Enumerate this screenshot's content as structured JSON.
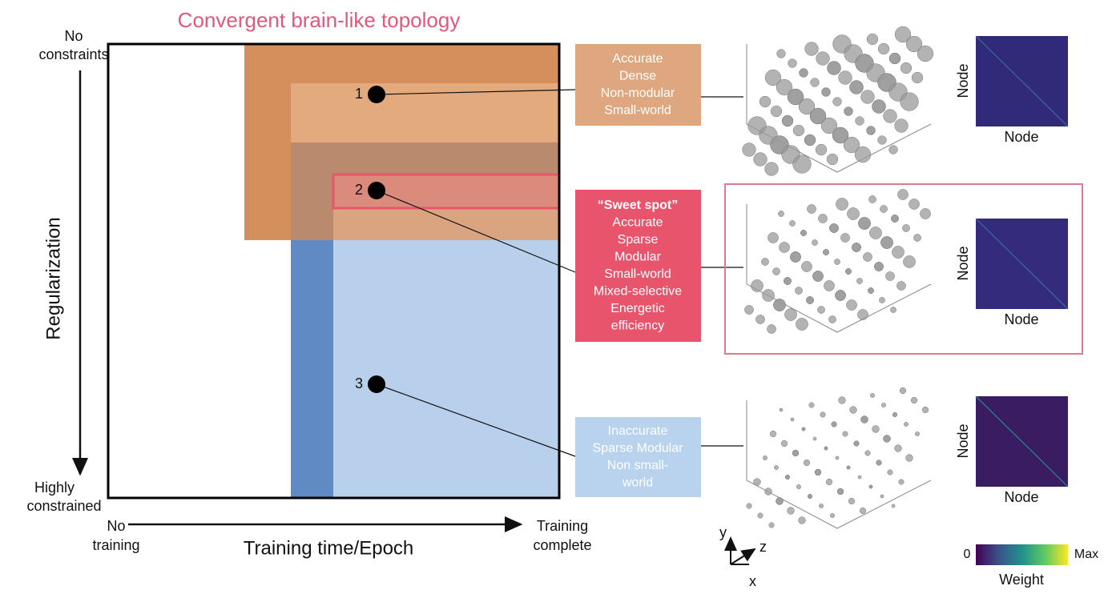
{
  "title": "Convergent brain-like topology",
  "y_axis": {
    "top": [
      "No",
      "constraints"
    ],
    "label": "Regularization",
    "bottom": [
      "Highly",
      "constrained"
    ]
  },
  "x_axis": {
    "left": [
      "No",
      "training"
    ],
    "label": "Training time/Epoch",
    "right": [
      "Training",
      "complete"
    ]
  },
  "points": [
    {
      "label": "1"
    },
    {
      "label": "2"
    },
    {
      "label": "3"
    }
  ],
  "panels": [
    {
      "lines": [
        "Accurate",
        "Dense",
        "Non-modular",
        "Small-world"
      ],
      "matrix": {
        "y_label": "Node",
        "x_label": "Node"
      }
    },
    {
      "heading": "“Sweet spot”",
      "lines": [
        "Accurate",
        "Sparse",
        "Modular",
        "Small-world",
        "Mixed-selective",
        "Energetic",
        "efficiency"
      ],
      "matrix": {
        "y_label": "Node",
        "x_label": "Node"
      }
    },
    {
      "lines": [
        "Inaccurate",
        "Sparse Modular",
        "Non small-",
        "world"
      ],
      "matrix": {
        "y_label": "Node",
        "x_label": "Node"
      }
    }
  ],
  "axes_legend": {
    "y": "y",
    "z": "z",
    "x": "x"
  },
  "colorbar": {
    "min": "0",
    "max": "Max",
    "label": "Weight"
  }
}
